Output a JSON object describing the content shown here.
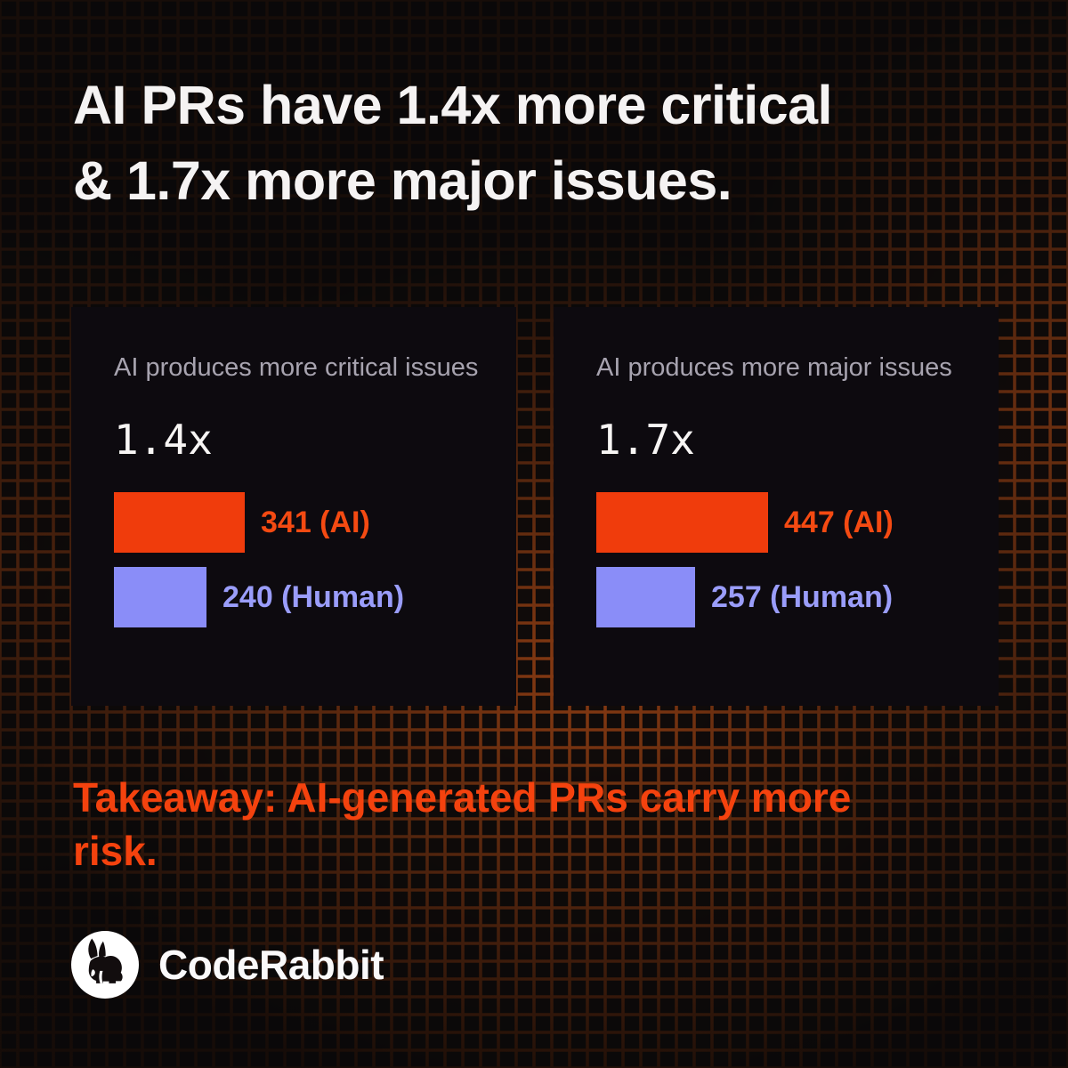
{
  "title": {
    "line1": "AI PRs have 1.4x more critical",
    "line2": "& 1.7x more major issues."
  },
  "cards": [
    {
      "label": "AI produces more critical issues",
      "multiplier": "1.4x",
      "bars": [
        {
          "series": "AI",
          "value": 341,
          "label": "341 (AI)"
        },
        {
          "series": "Human",
          "value": 240,
          "label": "240 (Human)"
        }
      ]
    },
    {
      "label": "AI produces more major issues",
      "multiplier": "1.7x",
      "bars": [
        {
          "series": "AI",
          "value": 447,
          "label": "447 (AI)"
        },
        {
          "series": "Human",
          "value": 257,
          "label": "257 (Human)"
        }
      ]
    }
  ],
  "takeaway": {
    "line1": "Takeaway: AI-generated PRs carry more",
    "line2": "risk."
  },
  "footer": {
    "brand": "CodeRabbit"
  },
  "colors": {
    "ai_bar": "#f03c0c",
    "ai_text": "#f44a12",
    "human_bar": "#8a8df8",
    "human_text": "#9a9dfa",
    "accent_takeaway": "#f4420e",
    "title_text": "#f5f3f3",
    "card_label_text": "#a7a3af",
    "card_bg": "#0d0a0f",
    "grid_glow": "#923e13",
    "background": "#170d09"
  },
  "chart_data": [
    {
      "type": "bar",
      "orientation": "horizontal",
      "title": "AI produces more critical issues",
      "annotation": "1.4x",
      "categories": [
        "AI",
        "Human"
      ],
      "values": [
        341,
        240
      ],
      "data_labels": [
        "341 (AI)",
        "240 (Human)"
      ],
      "bar_colors": [
        "#f03c0c",
        "#8a8df8"
      ],
      "grid": false,
      "legend_position": "inline-right"
    },
    {
      "type": "bar",
      "orientation": "horizontal",
      "title": "AI produces more major issues",
      "annotation": "1.7x",
      "categories": [
        "AI",
        "Human"
      ],
      "values": [
        447,
        257
      ],
      "data_labels": [
        "447 (AI)",
        "257 (Human)"
      ],
      "bar_colors": [
        "#f03c0c",
        "#8a8df8"
      ],
      "grid": false,
      "legend_position": "inline-right"
    }
  ]
}
